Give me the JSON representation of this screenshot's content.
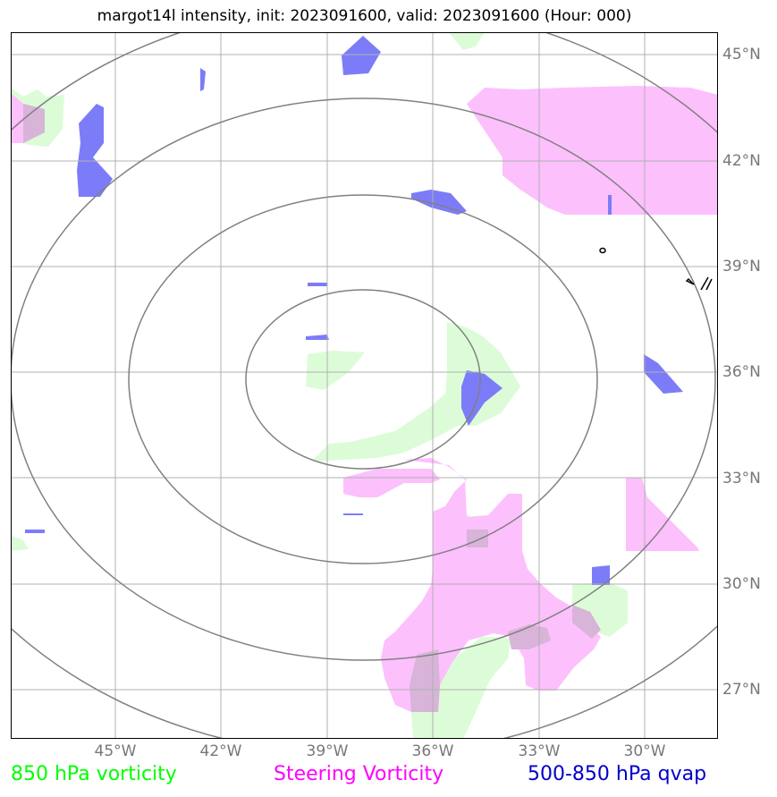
{
  "title": "margot14l intensity, init: 2023091600, valid: 2023091600 (Hour: 000)",
  "lat_labels": [
    "45°N",
    "42°N",
    "39°N",
    "36°N",
    "33°N",
    "30°N",
    "27°N"
  ],
  "lon_labels": [
    "45°W",
    "42°W",
    "39°W",
    "36°W",
    "33°W",
    "30°W"
  ],
  "legend": {
    "vort850": {
      "label": "850 hPa vorticity",
      "color": "#00ff00"
    },
    "steering": {
      "label": "Steering Vorticity",
      "color": "#ff00ff"
    },
    "qvap": {
      "label": "500-850 hPa qvap",
      "color": "#0000cc"
    }
  },
  "colors": {
    "green_fill": "#dcfcd8",
    "pink_fill": "#fcc0fc",
    "blue_fill": "#7c7cf8",
    "overlap_fill": "#d8b4d8",
    "grid": "#b0b0b0",
    "ring": "#808080"
  }
}
